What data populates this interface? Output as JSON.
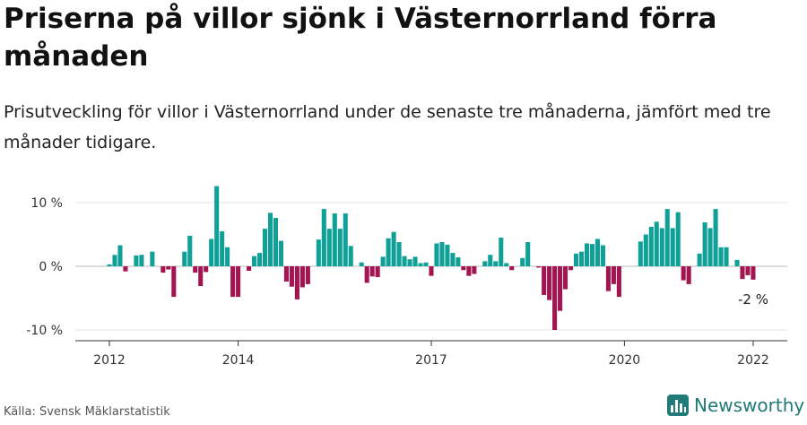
{
  "header": {
    "title": "Priserna på villor sjönk i Västernorrland förra månaden",
    "subtitle": "Prisutveckling för villor i Västernorrland under de senaste tre månaderna, jämfört med tre månader tidigare."
  },
  "footer": {
    "source": "Källa: Svensk Mäklarstatistik",
    "brand": "Newsworthy"
  },
  "colors": {
    "positive": "#0fa197",
    "negative": "#a31551",
    "brand": "#1f7a78"
  },
  "chart_data": {
    "type": "bar",
    "title": "Priserna på villor sjönk i Västernorrland förra månaden",
    "ylabel": "",
    "xlabel": "",
    "ylim": [
      -11,
      13
    ],
    "x_start": 2012,
    "x_step": 0.08333,
    "y_ticks": [
      {
        "value": 10,
        "label": "10 %"
      },
      {
        "value": 0,
        "label": "0 %"
      },
      {
        "value": -10,
        "label": "-10 %"
      }
    ],
    "x_ticks": [
      {
        "value": 2012,
        "label": "2012"
      },
      {
        "value": 2014,
        "label": "2014"
      },
      {
        "value": 2017,
        "label": "2017"
      },
      {
        "value": 2020,
        "label": "2020"
      },
      {
        "value": 2022,
        "label": "2022"
      }
    ],
    "annotation": {
      "label": "-2 %"
    },
    "values": [
      0.3,
      1.8,
      3.3,
      -0.8,
      0,
      1.7,
      1.8,
      0,
      2.3,
      0,
      -1,
      -0.5,
      -4.8,
      0,
      2.3,
      4.8,
      -1,
      -3.1,
      -0.9,
      4.3,
      12.6,
      5.5,
      3,
      -4.8,
      -4.8,
      0,
      -0.7,
      1.6,
      2.1,
      5.9,
      8.4,
      7.6,
      4,
      -2.4,
      -3.2,
      -5.2,
      -3.3,
      -2.8,
      0,
      4.2,
      9,
      5.9,
      8.3,
      5.9,
      8.3,
      3.2,
      0,
      0.6,
      -2.6,
      -1.6,
      -1.7,
      1.5,
      4.4,
      5.4,
      3.8,
      1.6,
      1.1,
      1.5,
      0.5,
      0.6,
      -1.5,
      3.6,
      3.8,
      3.4,
      2.1,
      1.4,
      -0.6,
      -1.5,
      -1.2,
      0,
      0.8,
      1.8,
      0.8,
      4.5,
      0.5,
      -0.6,
      0,
      1.3,
      3.8,
      0,
      -0.2,
      -4.5,
      -5.3,
      -10,
      -7,
      -3.6,
      -0.6,
      2,
      2.3,
      3.6,
      3.5,
      4.3,
      3.3,
      -3.9,
      -2.8,
      -4.8,
      0,
      0,
      0,
      3.9,
      5,
      6.2,
      7,
      6,
      9,
      6,
      8.5,
      -2.2,
      -2.8,
      0,
      2,
      6.9,
      6,
      9,
      3,
      3,
      0,
      1,
      -2,
      -1.4,
      -2.1
    ]
  }
}
